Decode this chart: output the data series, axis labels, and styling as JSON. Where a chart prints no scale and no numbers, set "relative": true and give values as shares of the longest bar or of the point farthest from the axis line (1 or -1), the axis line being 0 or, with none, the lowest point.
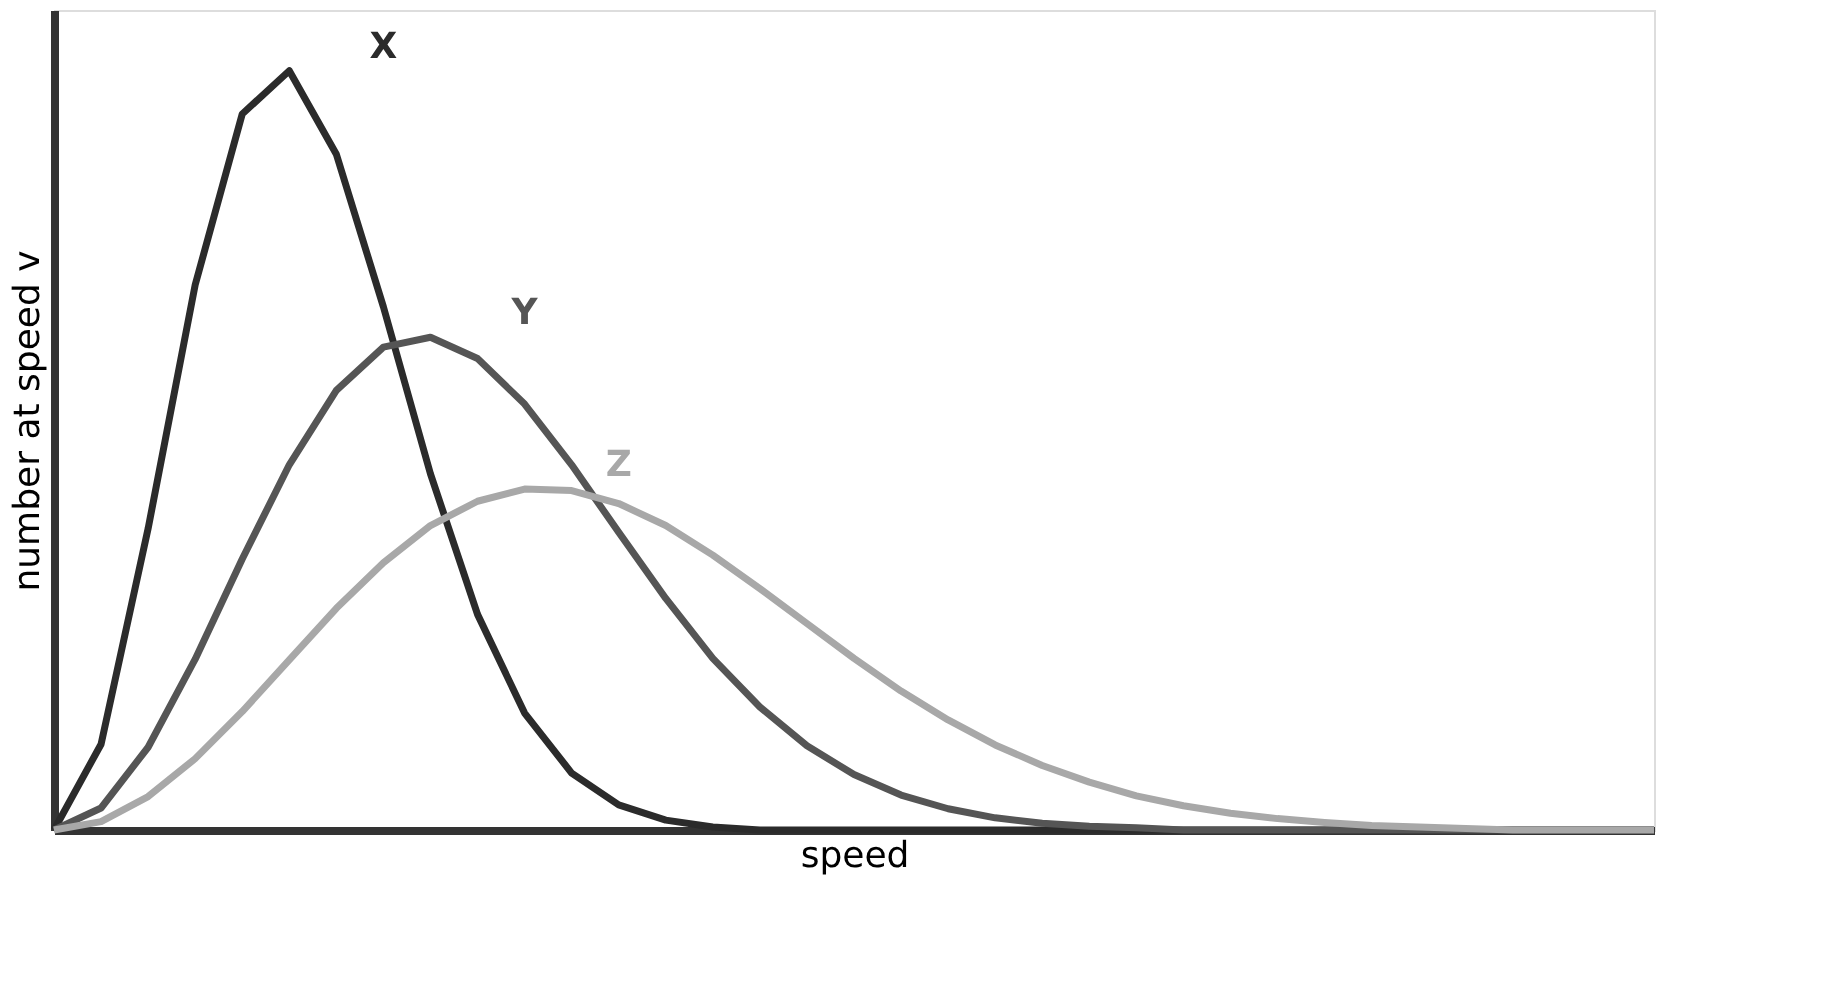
{
  "chart_data": {
    "type": "line",
    "relative": true,
    "xlabel": "speed",
    "ylabel": "number at speed v",
    "legend": false,
    "grid": false,
    "marker": "none",
    "line_style": "solid",
    "categories": [
      null,
      null,
      null,
      null,
      null,
      null,
      null,
      null,
      null,
      null,
      null,
      null,
      null,
      null,
      null,
      null,
      null,
      null,
      null,
      null,
      null,
      null,
      null,
      null,
      null,
      null,
      null,
      null,
      null,
      null,
      null,
      null,
      null,
      null,
      null
    ],
    "series": [
      {
        "name": "X",
        "color": "#2b2b2b",
        "values": [
          0,
          0.113,
          0.397,
          0.718,
          0.943,
          1,
          0.89,
          0.689,
          0.469,
          0.284,
          0.154,
          0.075,
          0.033,
          0.013,
          0.004,
          0,
          0,
          0,
          0,
          0,
          0,
          0,
          0,
          0,
          0,
          0,
          0,
          0,
          0,
          0,
          0,
          0,
          0,
          0,
          0
        ]
      },
      {
        "name": "Y",
        "color": "#555555",
        "values": [
          0,
          0.029,
          0.109,
          0.225,
          0.357,
          0.481,
          0.579,
          0.636,
          0.649,
          0.621,
          0.561,
          0.481,
          0.392,
          0.305,
          0.226,
          0.162,
          0.111,
          0.073,
          0.046,
          0.028,
          0.016,
          0.009,
          0.005,
          0.003,
          0,
          0,
          0,
          0,
          0,
          0,
          0,
          0,
          0,
          0,
          0
        ]
      },
      {
        "name": "Z",
        "color": "#a8a8a8",
        "values": [
          0,
          0.011,
          0.044,
          0.094,
          0.156,
          0.224,
          0.292,
          0.352,
          0.401,
          0.433,
          0.449,
          0.447,
          0.43,
          0.401,
          0.362,
          0.318,
          0.272,
          0.226,
          0.183,
          0.145,
          0.112,
          0.085,
          0.063,
          0.045,
          0.032,
          0.022,
          0.015,
          0.01,
          0.006,
          0.004,
          0.002,
          0,
          0,
          0,
          0
        ]
      }
    ]
  }
}
